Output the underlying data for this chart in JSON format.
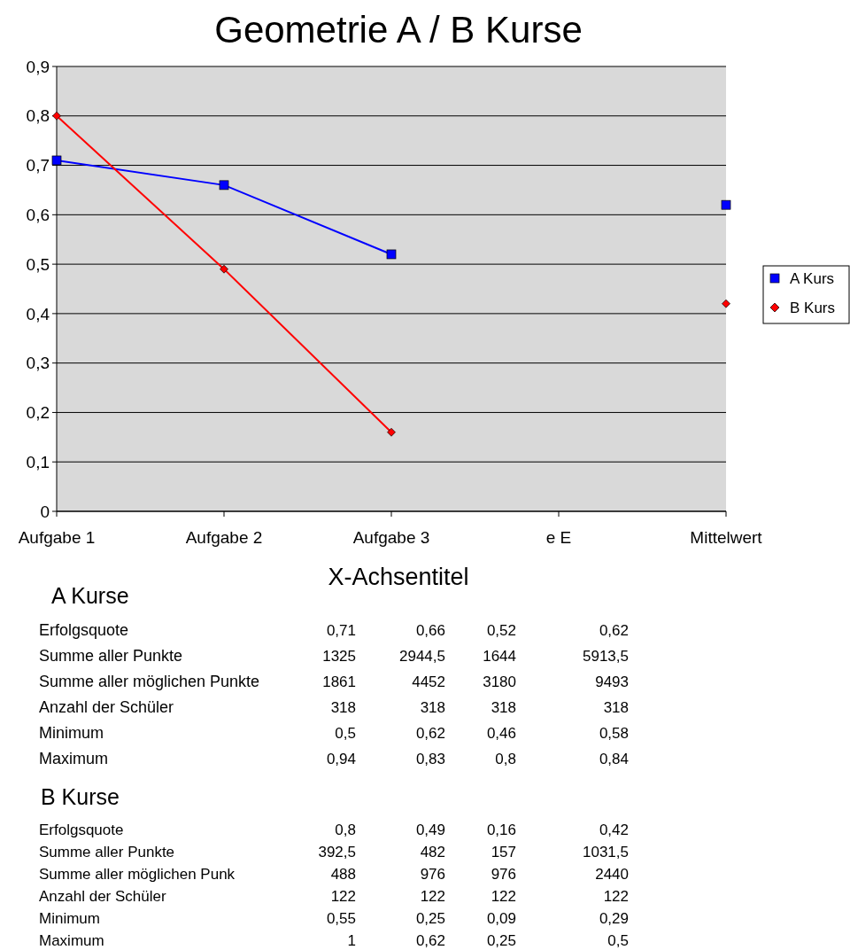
{
  "chart_data": {
    "type": "line",
    "title": "Geometrie A / B Kurse",
    "xlabel": "X-Achsentitel",
    "categories": [
      "Aufgabe 1",
      "Aufgabe 2",
      "Aufgabe 3",
      "e E",
      "Mittelwert"
    ],
    "series": [
      {
        "name": "A Kurs",
        "color": "#0000ff",
        "marker": "square",
        "values": [
          0.71,
          0.66,
          0.52,
          null,
          0.62
        ]
      },
      {
        "name": "B Kurs",
        "color": "#ff0000",
        "marker": "diamond",
        "values": [
          0.8,
          0.49,
          0.16,
          null,
          0.42
        ]
      }
    ],
    "ylim": [
      0,
      0.9
    ],
    "yticks": [
      {
        "value": 0,
        "label": "0"
      },
      {
        "value": 0.1,
        "label": "0,1"
      },
      {
        "value": 0.2,
        "label": "0,2"
      },
      {
        "value": 0.3,
        "label": "0,3"
      },
      {
        "value": 0.4,
        "label": "0,4"
      },
      {
        "value": 0.5,
        "label": "0,5"
      },
      {
        "value": 0.6,
        "label": "0,6"
      },
      {
        "value": 0.7,
        "label": "0,7"
      },
      {
        "value": 0.8,
        "label": "0,8"
      },
      {
        "value": 0.9,
        "label": "0,9"
      }
    ],
    "grid": "y",
    "legend": "right",
    "annotations": [
      "A Kurse",
      "Erfolgsquote\t0,71\t0,66\t0,52\t0,62",
      "Summe aller Punkte\t1325\t2944,5\t1644\t5913,5",
      "Summe aller möglichen Punkte\t1861\t4452\t3180\t9493",
      "Anzahl der Schüler\t318\t318\t318\t318",
      "Minimum\t0,5\t0,62\t0,46\t0,58",
      "Maximum\t0,94\t0,83\t0,8\t0,84",
      "B Kurse",
      "Erfolgsquote\t0,8\t0,49\t0,16\t0,42",
      "Summe aller Punkte\t392,5\t482\t157\t1031,5",
      "Summe aller möglichen Punk\t488\t976\t976\t2440",
      "Anzahl der Schüler\t122\t122\t122\t122",
      "Minimum\t0,55\t0,25\t0,09\t0,29",
      "Maximum\t1\t0,62\t0,25\t0,5"
    ]
  }
}
